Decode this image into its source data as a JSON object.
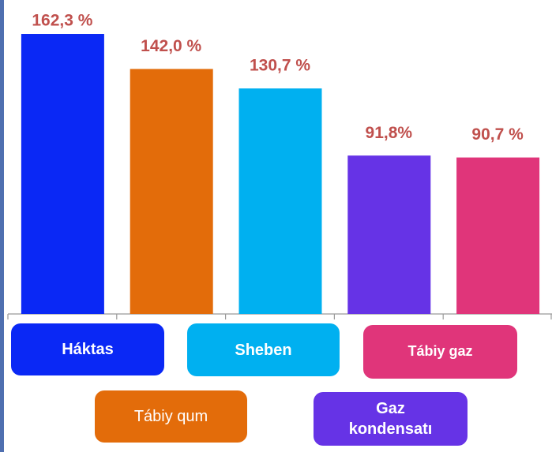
{
  "chart_data": {
    "type": "bar",
    "categories": [
      "Háktas",
      "Tábiy qum",
      "Sheben",
      "Gaz kondensatı",
      "Tábiy gaz"
    ],
    "values": [
      162.3,
      142.0,
      130.7,
      91.8,
      90.7
    ],
    "value_labels": [
      "162,3 %",
      "142,0 %",
      "130,7 %",
      "91,8%",
      "90,7 %"
    ],
    "colors": [
      "#0a28f5",
      "#e36c0a",
      "#00b0f0",
      "#6633e6",
      "#e0357a"
    ],
    "ylim": [
      0,
      180
    ]
  }
}
